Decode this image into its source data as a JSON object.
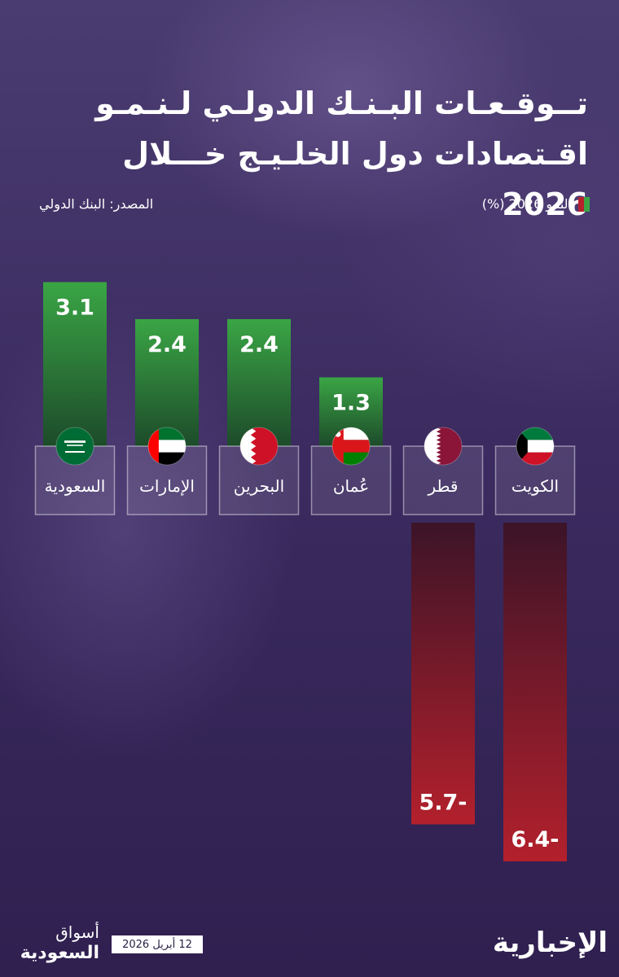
{
  "header": {
    "title": "تــوقـعـات البـنـك الدولـي لـنـمـو اقـتصادات دول الخلـيـج خـــلال 2026",
    "source": "المصدر: البنك الدولي",
    "legend_label": "النمو 2026 (%)"
  },
  "chart_data": {
    "type": "bar",
    "title": "تــوقـعـات البـنـك الدولـي لـنـمـو اقـتصادات دول الخلـيـج خـــلال 2026",
    "series_label": "النمو 2026 (%)",
    "categories": [
      "الكويت",
      "قطر",
      "عُمان",
      "البحرين",
      "الإمارات",
      "السعودية"
    ],
    "values": [
      -6.4,
      -5.7,
      1.3,
      2.4,
      2.4,
      3.1
    ],
    "value_labels": [
      "6.4-",
      "5.7-",
      "1.3",
      "2.4",
      "2.4",
      "3.1"
    ],
    "positive_color": "#3aa545",
    "negative_color": "#b3202c",
    "flags": [
      "kuwait-flag-icon",
      "qatar-flag-icon",
      "oman-flag-icon",
      "bahrain-flag-icon",
      "uae-flag-icon",
      "saudi-flag-icon"
    ]
  },
  "footer": {
    "date": "12 أبريل 2026",
    "brand_left_line1": "أسواق",
    "brand_left_line2": "السعودية",
    "brand_right": "الإخبارية"
  }
}
